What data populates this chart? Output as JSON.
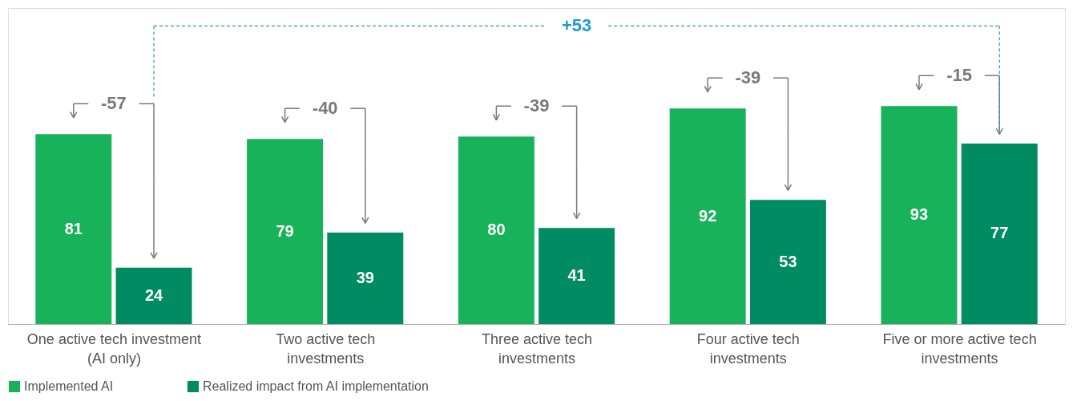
{
  "chart_data": {
    "type": "bar",
    "categories": [
      "One active tech investment (AI only)",
      "Two active tech investments",
      "Three active tech investments",
      "Four active tech investments",
      "Five or more active tech investments"
    ],
    "series": [
      {
        "name": "Implemented AI",
        "color": "#17b25a",
        "values": [
          81,
          79,
          80,
          92,
          93
        ]
      },
      {
        "name": "Realized impact from AI implementation",
        "color": "#008b62",
        "values": [
          24,
          39,
          41,
          53,
          77
        ]
      }
    ],
    "annotations": [
      "-57",
      "-40",
      "-39",
      "-39",
      "-15",
      "+53"
    ],
    "data_labels": true,
    "legend": "bottom"
  }
}
